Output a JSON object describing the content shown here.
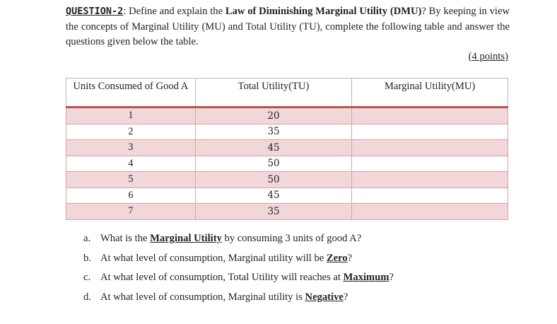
{
  "question": {
    "label": "QUESTION-2",
    "label_suffix": ":",
    "text_before": " Define and explain the ",
    "bold_term": "Law of Diminishing Marginal Utility (DMU)",
    "text_after": "? By keeping in view the concepts of Marginal Utility (MU) and Total Utility (TU), complete the following table and answer the questions given below the table.",
    "points": "(4 points)"
  },
  "table": {
    "headers": [
      "Units Consumed of Good A",
      "Total Utility(TU)",
      "Marginal Utility(MU)"
    ],
    "rows": [
      {
        "units": "1",
        "tu": "20",
        "mu": ""
      },
      {
        "units": "2",
        "tu": "35",
        "mu": ""
      },
      {
        "units": "3",
        "tu": "45",
        "mu": ""
      },
      {
        "units": "4",
        "tu": "50",
        "mu": ""
      },
      {
        "units": "5",
        "tu": "50",
        "mu": ""
      },
      {
        "units": "6",
        "tu": "45",
        "mu": ""
      },
      {
        "units": "7",
        "tu": "35",
        "mu": ""
      }
    ]
  },
  "questions": [
    {
      "letter": "a.",
      "before": "What is the ",
      "emph": "Marginal Utility",
      "after": " by consuming 3 units of good A?"
    },
    {
      "letter": "b.",
      "before": "At what level of consumption, Marginal utility will be ",
      "emph": "Zero",
      "after": "?"
    },
    {
      "letter": "c.",
      "before": "At what level of consumption, Total Utility will reaches at ",
      "emph": "Maximum",
      "after": "?"
    },
    {
      "letter": "d.",
      "before": "At what level of consumption, Marginal utility is ",
      "emph": "Negative",
      "after": "?"
    }
  ]
}
